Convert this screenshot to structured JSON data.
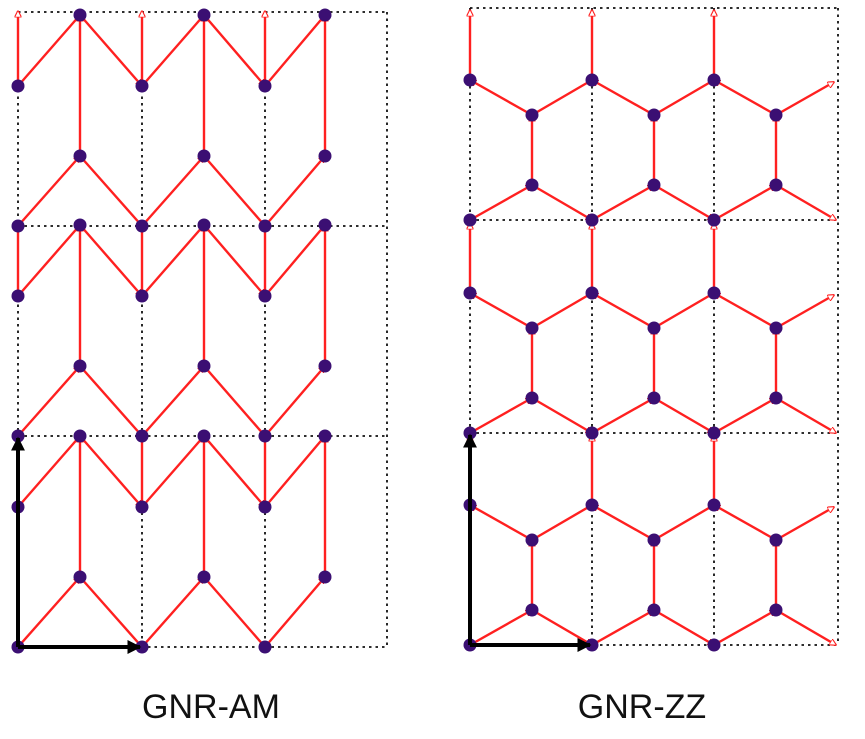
{
  "colors": {
    "bond": "#ff2020",
    "atom": "#3b0f73",
    "grid": "#111111",
    "lattice_vector": "#000000"
  },
  "panels": [
    {
      "id": "am",
      "label": "GNR-AM"
    },
    {
      "id": "zz",
      "label": "GNR-ZZ"
    }
  ]
}
